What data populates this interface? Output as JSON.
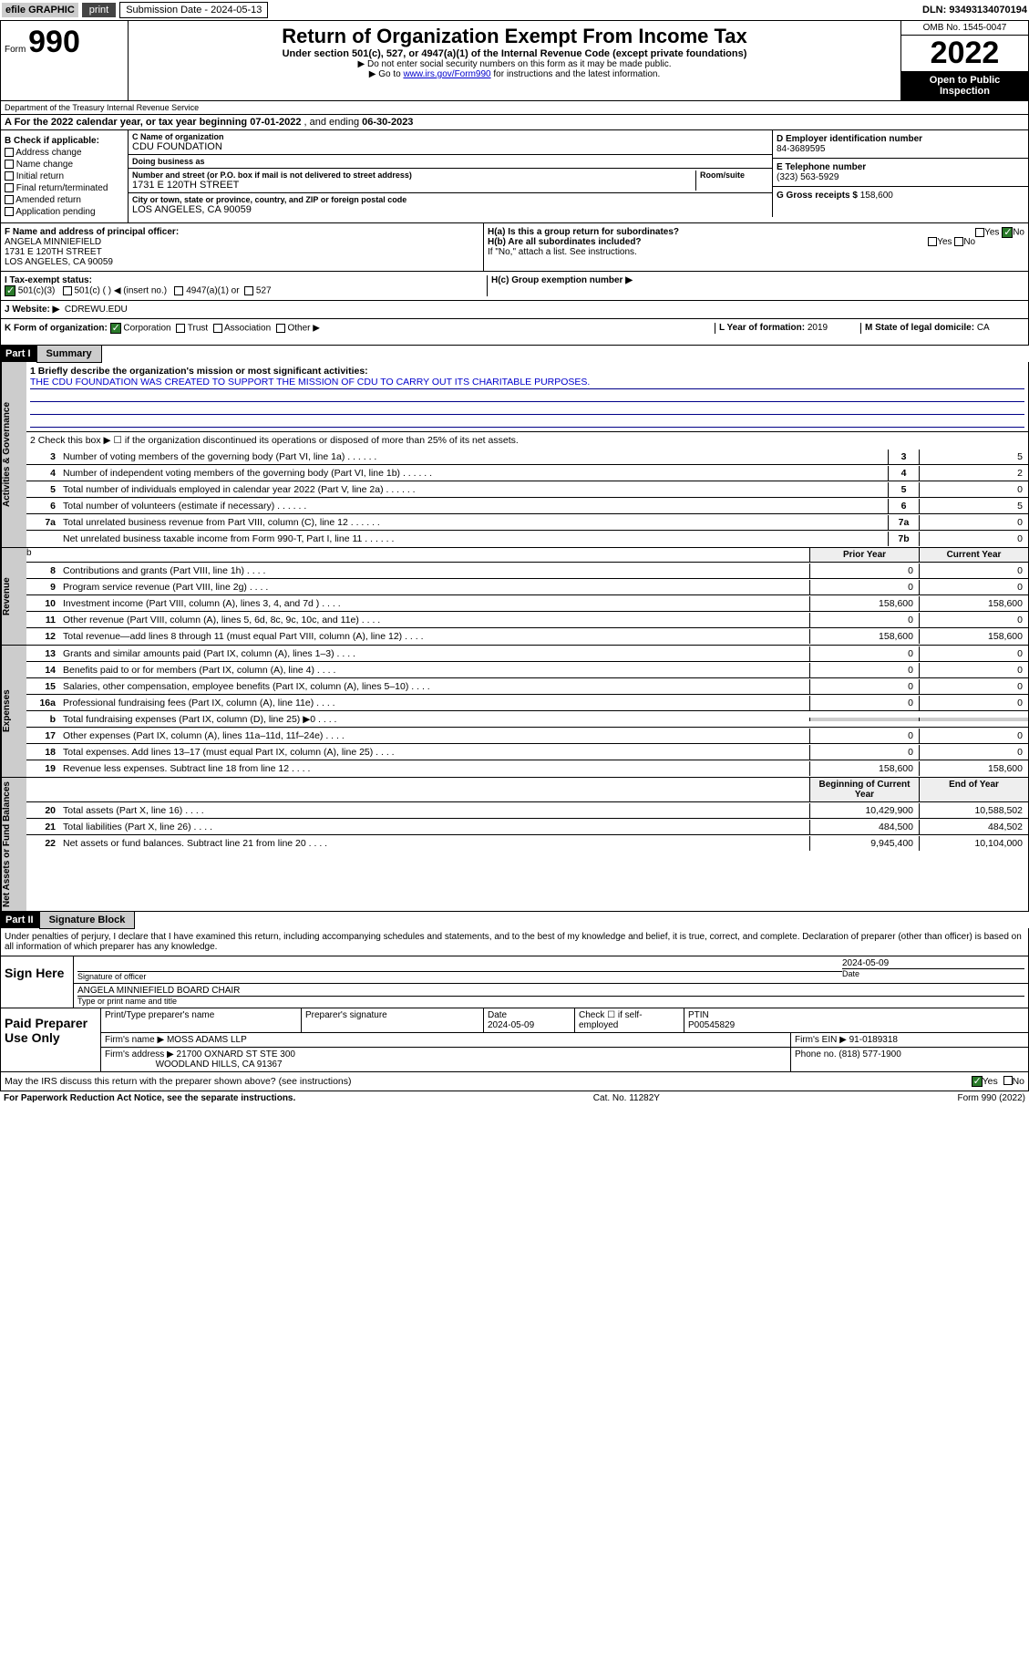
{
  "topbar": {
    "efile": "efile GRAPHIC",
    "print": "print",
    "subdate_label": "Submission Date - 2024-05-13",
    "dln": "DLN: 93493134070194"
  },
  "header": {
    "form_prefix": "Form",
    "form_num": "990",
    "title": "Return of Organization Exempt From Income Tax",
    "sub": "Under section 501(c), 527, or 4947(a)(1) of the Internal Revenue Code (except private foundations)",
    "note1": "▶ Do not enter social security numbers on this form as it may be made public.",
    "note2_pre": "▶ Go to ",
    "note2_link": "www.irs.gov/Form990",
    "note2_post": " for instructions and the latest information.",
    "omb": "OMB No. 1545-0047",
    "year": "2022",
    "inspect": "Open to Public Inspection",
    "dept": "Department of the Treasury Internal Revenue Service"
  },
  "rowA": {
    "text_pre": "A For the 2022 calendar year, or tax year beginning ",
    "begin": "07-01-2022",
    "mid": " , and ending ",
    "end": "06-30-2023"
  },
  "colB": {
    "label": "B Check if applicable:",
    "items": [
      "Address change",
      "Name change",
      "Initial return",
      "Final return/terminated",
      "Amended return",
      "Application pending"
    ]
  },
  "orgname": {
    "lbl": "C Name of organization",
    "val": "CDU FOUNDATION"
  },
  "dba": {
    "lbl": "Doing business as",
    "val": ""
  },
  "street": {
    "lbl": "Number and street (or P.O. box if mail is not delivered to street address)",
    "room": "Room/suite",
    "val": "1731 E 120TH STREET"
  },
  "city": {
    "lbl": "City or town, state or province, country, and ZIP or foreign postal code",
    "val": "LOS ANGELES, CA  90059"
  },
  "ein": {
    "lbl": "D Employer identification number",
    "val": "84-3689595"
  },
  "phone": {
    "lbl": "E Telephone number",
    "val": "(323) 563-5929"
  },
  "gross": {
    "lbl": "G Gross receipts $",
    "val": "158,600"
  },
  "officer": {
    "lbl": "F Name and address of principal officer:",
    "name": "ANGELA MINNIEFIELD",
    "addr1": "1731 E 120TH STREET",
    "addr2": "LOS ANGELES, CA  90059"
  },
  "ha": "H(a) Is this a group return for subordinates?",
  "hb": "H(b) Are all subordinates included?",
  "hb_note": "If \"No,\" attach a list. See instructions.",
  "hc": "H(c) Group exemption number ▶",
  "taxexempt": {
    "lbl": "I   Tax-exempt status:",
    "c3": "501(c)(3)",
    "c": "501(c) (  ) ◀ (insert no.)",
    "a1": "4947(a)(1) or",
    "c527": "527"
  },
  "website": {
    "lbl": "J   Website: ▶",
    "val": "CDREWU.EDU"
  },
  "rowK": {
    "lbl": "K Form of organization:",
    "corp": "Corporation",
    "trust": "Trust",
    "assoc": "Association",
    "other": "Other ▶"
  },
  "rowL": {
    "lbl": "L Year of formation:",
    "val": "2019"
  },
  "rowM": {
    "lbl": "M State of legal domicile:",
    "val": "CA"
  },
  "part1": {
    "hdr": "Part I",
    "title": "Summary"
  },
  "mission": {
    "lbl": "1   Briefly describe the organization's mission or most significant activities:",
    "text": "THE CDU FOUNDATION WAS CREATED TO SUPPORT THE MISSION OF CDU TO CARRY OUT ITS CHARITABLE PURPOSES."
  },
  "line2": "2   Check this box ▶ ☐ if the organization discontinued its operations or disposed of more than 25% of its net assets.",
  "lines_gov": [
    {
      "n": "3",
      "t": "Number of voting members of the governing body (Part VI, line 1a)",
      "b": "3",
      "v": "5"
    },
    {
      "n": "4",
      "t": "Number of independent voting members of the governing body (Part VI, line 1b)",
      "b": "4",
      "v": "2"
    },
    {
      "n": "5",
      "t": "Total number of individuals employed in calendar year 2022 (Part V, line 2a)",
      "b": "5",
      "v": "0"
    },
    {
      "n": "6",
      "t": "Total number of volunteers (estimate if necessary)",
      "b": "6",
      "v": "5"
    },
    {
      "n": "7a",
      "t": "Total unrelated business revenue from Part VIII, column (C), line 12",
      "b": "7a",
      "v": "0"
    },
    {
      "n": "",
      "t": "Net unrelated business taxable income from Form 990-T, Part I, line 11",
      "b": "7b",
      "v": "0"
    }
  ],
  "col_hdrs": {
    "prior": "Prior Year",
    "curr": "Current Year",
    "bcy": "Beginning of Current Year",
    "eoy": "End of Year"
  },
  "lines_rev": [
    {
      "n": "8",
      "t": "Contributions and grants (Part VIII, line 1h)",
      "p": "0",
      "c": "0"
    },
    {
      "n": "9",
      "t": "Program service revenue (Part VIII, line 2g)",
      "p": "0",
      "c": "0"
    },
    {
      "n": "10",
      "t": "Investment income (Part VIII, column (A), lines 3, 4, and 7d )",
      "p": "158,600",
      "c": "158,600"
    },
    {
      "n": "11",
      "t": "Other revenue (Part VIII, column (A), lines 5, 6d, 8c, 9c, 10c, and 11e)",
      "p": "0",
      "c": "0"
    },
    {
      "n": "12",
      "t": "Total revenue—add lines 8 through 11 (must equal Part VIII, column (A), line 12)",
      "p": "158,600",
      "c": "158,600"
    }
  ],
  "lines_exp": [
    {
      "n": "13",
      "t": "Grants and similar amounts paid (Part IX, column (A), lines 1–3)",
      "p": "0",
      "c": "0"
    },
    {
      "n": "14",
      "t": "Benefits paid to or for members (Part IX, column (A), line 4)",
      "p": "0",
      "c": "0"
    },
    {
      "n": "15",
      "t": "Salaries, other compensation, employee benefits (Part IX, column (A), lines 5–10)",
      "p": "0",
      "c": "0"
    },
    {
      "n": "16a",
      "t": "Professional fundraising fees (Part IX, column (A), line 11e)",
      "p": "0",
      "c": "0"
    },
    {
      "n": "b",
      "t": "Total fundraising expenses (Part IX, column (D), line 25) ▶0",
      "p": "",
      "c": "",
      "shaded": true
    },
    {
      "n": "17",
      "t": "Other expenses (Part IX, column (A), lines 11a–11d, 11f–24e)",
      "p": "0",
      "c": "0"
    },
    {
      "n": "18",
      "t": "Total expenses. Add lines 13–17 (must equal Part IX, column (A), line 25)",
      "p": "0",
      "c": "0"
    },
    {
      "n": "19",
      "t": "Revenue less expenses. Subtract line 18 from line 12",
      "p": "158,600",
      "c": "158,600"
    }
  ],
  "lines_na": [
    {
      "n": "20",
      "t": "Total assets (Part X, line 16)",
      "p": "10,429,900",
      "c": "10,588,502"
    },
    {
      "n": "21",
      "t": "Total liabilities (Part X, line 26)",
      "p": "484,500",
      "c": "484,502"
    },
    {
      "n": "22",
      "t": "Net assets or fund balances. Subtract line 21 from line 20",
      "p": "9,945,400",
      "c": "10,104,000"
    }
  ],
  "side_labels": {
    "gov": "Activities & Governance",
    "rev": "Revenue",
    "exp": "Expenses",
    "na": "Net Assets or Fund Balances"
  },
  "part2": {
    "hdr": "Part II",
    "title": "Signature Block"
  },
  "penalties": "Under penalties of perjury, I declare that I have examined this return, including accompanying schedules and statements, and to the best of my knowledge and belief, it is true, correct, and complete. Declaration of preparer (other than officer) is based on all information of which preparer has any knowledge.",
  "sign": {
    "here": "Sign Here",
    "sig_lbl": "Signature of officer",
    "date_lbl": "Date",
    "date": "2024-05-09",
    "name": "ANGELA MINNIEFIELD  BOARD CHAIR",
    "name_lbl": "Type or print name and title"
  },
  "paid": {
    "lbl": "Paid Preparer Use Only",
    "h1": "Print/Type preparer's name",
    "h2": "Preparer's signature",
    "h3": "Date",
    "h3v": "2024-05-09",
    "h4": "Check ☐ if self-employed",
    "h5": "PTIN",
    "h5v": "P00545829",
    "firm_lbl": "Firm's name   ▶",
    "firm": "MOSS ADAMS LLP",
    "ein_lbl": "Firm's EIN ▶",
    "ein": "91-0189318",
    "addr_lbl": "Firm's address ▶",
    "addr1": "21700 OXNARD ST STE 300",
    "addr2": "WOODLAND HILLS, CA  91367",
    "phone_lbl": "Phone no.",
    "phone": "(818) 577-1900"
  },
  "may": "May the IRS discuss this return with the preparer shown above? (see instructions)",
  "may_yes": "Yes",
  "may_no": "No",
  "footer": {
    "left": "For Paperwork Reduction Act Notice, see the separate instructions.",
    "mid": "Cat. No. 11282Y",
    "right": "Form 990 (2022)"
  }
}
